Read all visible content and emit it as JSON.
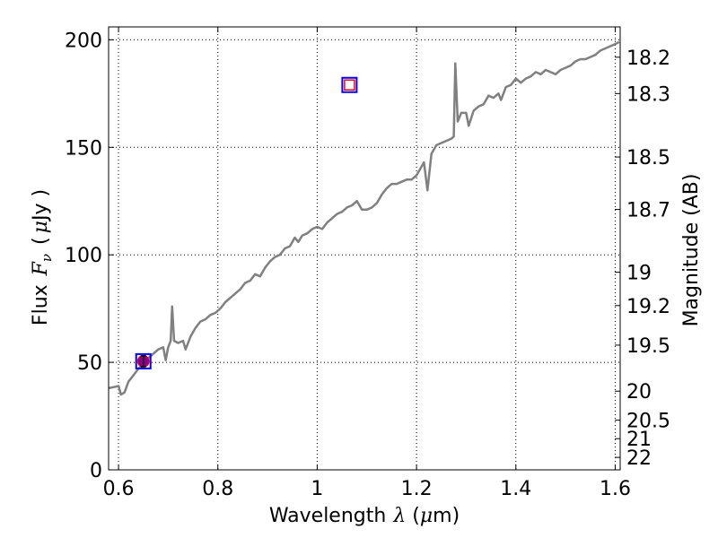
{
  "chart_data": {
    "type": "line",
    "xlabel": "Wavelength",
    "xlabel_symbol": "λ",
    "xlabel_unit_open": " (",
    "xlabel_unit_mu": "μ",
    "xlabel_unit_rest": "m)",
    "ylabel": "Flux",
    "ylabel_symbol_base": "F",
    "ylabel_symbol_sub": "ν",
    "ylabel_unit_open": "(",
    "ylabel_unit_mu": "μ",
    "ylabel_unit_rest": "Jy )",
    "y2label": "Magnitude (AB)",
    "xlim": [
      0.58,
      1.61
    ],
    "ylim": [
      0,
      206
    ],
    "grid": true,
    "x_ticks": [
      0.6,
      0.8,
      1.0,
      1.2,
      1.4,
      1.6
    ],
    "x_tick_labels": [
      "0.6",
      "0.8",
      "1",
      "1.2",
      "1.4",
      "1.6"
    ],
    "y_ticks": [
      0,
      50,
      100,
      150,
      200
    ],
    "y_tick_labels": [
      "0",
      "50",
      "100",
      "150",
      "200"
    ],
    "y2_ticks": [
      {
        "label": "18.2",
        "flux": 191.9
      },
      {
        "label": "18.3",
        "flux": 175.0
      },
      {
        "label": "18.5",
        "flux": 145.5
      },
      {
        "label": "18.7",
        "flux": 121.1
      },
      {
        "label": "19",
        "flux": 91.9
      },
      {
        "label": "19.2",
        "flux": 76.4
      },
      {
        "label": "19.5",
        "flux": 58.0
      },
      {
        "label": "20",
        "flux": 36.6
      },
      {
        "label": "20.5",
        "flux": 23.1
      },
      {
        "label": "21",
        "flux": 14.5
      },
      {
        "label": "22",
        "flux": 5.8
      }
    ],
    "series": [
      {
        "color": "#808080",
        "points": [
          [
            0.58,
            38
          ],
          [
            0.6,
            39
          ],
          [
            0.605,
            35
          ],
          [
            0.612,
            36
          ],
          [
            0.62,
            41
          ],
          [
            0.63,
            44
          ],
          [
            0.64,
            47
          ],
          [
            0.65,
            49
          ],
          [
            0.66,
            52
          ],
          [
            0.67,
            54
          ],
          [
            0.68,
            56
          ],
          [
            0.69,
            57
          ],
          [
            0.695,
            51
          ],
          [
            0.7,
            57
          ],
          [
            0.705,
            60
          ],
          [
            0.708,
            76
          ],
          [
            0.712,
            60
          ],
          [
            0.72,
            59
          ],
          [
            0.73,
            60
          ],
          [
            0.735,
            56
          ],
          [
            0.745,
            62
          ],
          [
            0.755,
            66
          ],
          [
            0.765,
            69
          ],
          [
            0.775,
            70
          ],
          [
            0.785,
            72
          ],
          [
            0.795,
            73
          ],
          [
            0.805,
            75
          ],
          [
            0.815,
            78
          ],
          [
            0.825,
            80
          ],
          [
            0.835,
            82
          ],
          [
            0.845,
            84
          ],
          [
            0.855,
            87
          ],
          [
            0.865,
            88
          ],
          [
            0.875,
            91
          ],
          [
            0.885,
            90
          ],
          [
            0.895,
            94
          ],
          [
            0.905,
            97
          ],
          [
            0.915,
            99
          ],
          [
            0.925,
            100
          ],
          [
            0.935,
            103
          ],
          [
            0.945,
            104
          ],
          [
            0.955,
            108
          ],
          [
            0.962,
            106
          ],
          [
            0.97,
            109
          ],
          [
            0.98,
            110
          ],
          [
            0.99,
            112
          ],
          [
            1.0,
            113
          ],
          [
            1.01,
            112
          ],
          [
            1.02,
            115
          ],
          [
            1.03,
            117
          ],
          [
            1.04,
            119
          ],
          [
            1.05,
            120
          ],
          [
            1.06,
            122
          ],
          [
            1.07,
            123
          ],
          [
            1.08,
            125
          ],
          [
            1.09,
            121
          ],
          [
            1.1,
            121
          ],
          [
            1.11,
            122
          ],
          [
            1.12,
            124
          ],
          [
            1.13,
            128
          ],
          [
            1.14,
            131
          ],
          [
            1.15,
            133
          ],
          [
            1.16,
            133
          ],
          [
            1.17,
            134
          ],
          [
            1.18,
            135
          ],
          [
            1.19,
            135
          ],
          [
            1.2,
            137
          ],
          [
            1.21,
            141
          ],
          [
            1.215,
            143
          ],
          [
            1.222,
            130
          ],
          [
            1.23,
            147
          ],
          [
            1.24,
            151
          ],
          [
            1.25,
            152
          ],
          [
            1.26,
            153
          ],
          [
            1.27,
            154
          ],
          [
            1.275,
            155
          ],
          [
            1.278,
            189
          ],
          [
            1.283,
            162
          ],
          [
            1.29,
            166
          ],
          [
            1.3,
            166
          ],
          [
            1.305,
            160
          ],
          [
            1.315,
            167
          ],
          [
            1.325,
            169
          ],
          [
            1.335,
            170
          ],
          [
            1.345,
            174
          ],
          [
            1.355,
            173
          ],
          [
            1.365,
            175
          ],
          [
            1.37,
            172
          ],
          [
            1.38,
            178
          ],
          [
            1.39,
            179
          ],
          [
            1.4,
            182
          ],
          [
            1.41,
            180
          ],
          [
            1.42,
            182
          ],
          [
            1.43,
            183
          ],
          [
            1.44,
            185
          ],
          [
            1.45,
            184
          ],
          [
            1.46,
            186
          ],
          [
            1.47,
            185
          ],
          [
            1.48,
            184
          ],
          [
            1.49,
            186
          ],
          [
            1.5,
            187
          ],
          [
            1.51,
            188
          ],
          [
            1.52,
            190
          ],
          [
            1.53,
            191
          ],
          [
            1.54,
            191
          ],
          [
            1.55,
            192
          ],
          [
            1.56,
            193
          ],
          [
            1.57,
            195
          ],
          [
            1.58,
            196
          ],
          [
            1.59,
            197
          ],
          [
            1.6,
            198
          ],
          [
            1.608,
            199
          ]
        ]
      }
    ],
    "markers": [
      {
        "kind": "photometry",
        "x": 0.65,
        "y": 50.5,
        "yerr": 2.5,
        "fill": "#8b008b",
        "box_color": "#0000ff",
        "inner_color": "#ff0000"
      },
      {
        "kind": "model",
        "x": 1.065,
        "y": 179,
        "fill": "#ffffff",
        "box_color": "#0000ff",
        "inner_color": "#ff0000"
      }
    ],
    "frame_color": "#000000",
    "grid_color": "#000000"
  }
}
